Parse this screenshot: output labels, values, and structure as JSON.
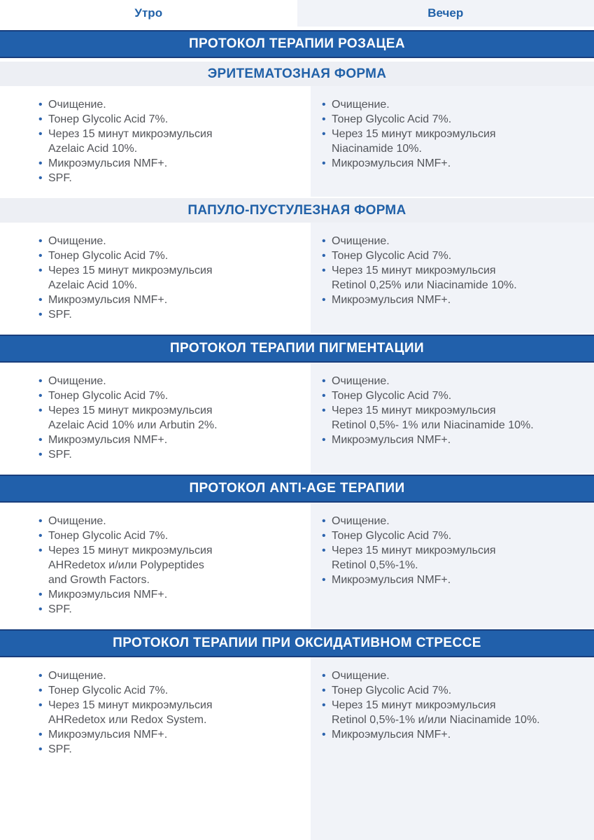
{
  "theme": {
    "banner_bg": "#2160ab",
    "banner_border": "#193e7d",
    "accent": "#2161a8",
    "bullet": "#2c63ad",
    "body_text": "#53555a",
    "evening_bg": "#f1f3f8",
    "band_bg": "#edeff4"
  },
  "header": {
    "morning_label": "Утро",
    "evening_label": "Вечер"
  },
  "protocols": [
    {
      "title": "ПРОТОКОЛ ТЕРАПИИ РОЗАЦЕА",
      "subsections": [
        {
          "title": "ЭРИТЕМАТОЗНАЯ ФОРМА",
          "morning": [
            "Очищение.",
            "Тонер Glycolic Acid 7%.",
            "Через 15 минут микроэмульсия\nAzelaic Acid 10%.",
            "Микроэмульсия NMF+.",
            "SPF."
          ],
          "evening": [
            "Очищение.",
            "Тонер Glycolic Acid 7%.",
            "Через 15 минут микроэмульсия\nNiacinamide 10%.",
            "Микроэмульсия NMF+."
          ]
        },
        {
          "title": "ПАПУЛО-ПУСТУЛЕЗНАЯ ФОРМА",
          "morning": [
            "Очищение.",
            "Тонер Glycolic Acid 7%.",
            "Через 15 минут микроэмульсия\nAzelaic Acid 10%.",
            "Микроэмульсия NMF+.",
            "SPF."
          ],
          "evening": [
            "Очищение.",
            "Тонер Glycolic Acid 7%.",
            "Через 15 минут микроэмульсия\nRetinol 0,25% или Niacinamide 10%.",
            "Микроэмульсия NMF+."
          ]
        }
      ]
    },
    {
      "title": "ПРОТОКОЛ ТЕРАПИИ ПИГМЕНТАЦИИ",
      "subsections": [
        {
          "title": "",
          "morning": [
            "Очищение.",
            "Тонер Glycolic Acid 7%.",
            "Через 15 минут микроэмульсия\nAzelaic Acid 10% или Arbutin 2%.",
            "Микроэмульсия NMF+.",
            "SPF."
          ],
          "evening": [
            "Очищение.",
            "Тонер Glycolic Acid 7%.",
            "Через 15 минут микроэмульсия\nRetinol 0,5%- 1% или Niacinamide 10%.",
            "Микроэмульсия NMF+."
          ]
        }
      ]
    },
    {
      "title": "ПРОТОКОЛ ANTI-AGE ТЕРАПИИ",
      "subsections": [
        {
          "title": "",
          "morning": [
            "Очищение.",
            "Тонер Glycolic Acid 7%.",
            "Через 15 минут микроэмульсия\nAHRedetox и/или Polypeptides\nand Growth Factors.",
            "Микроэмульсия NMF+.",
            "SPF."
          ],
          "evening": [
            "Очищение.",
            "Тонер Glycolic Acid 7%.",
            "Через 15 минут микроэмульсия\nRetinol 0,5%-1%.",
            "Микроэмульсия NMF+."
          ]
        }
      ]
    },
    {
      "title": "ПРОТОКОЛ ТЕРАПИИ ПРИ ОКСИДАТИВНОМ СТРЕССЕ",
      "subsections": [
        {
          "title": "",
          "morning": [
            "Очищение.",
            "Тонер Glycolic Acid 7%.",
            "Через 15 минут микроэмульсия\nAHRedetox или Redox System.",
            "Микроэмульсия NMF+.",
            "SPF."
          ],
          "evening": [
            "Очищение.",
            "Тонер Glycolic Acid 7%.",
            "Через 15 минут микроэмульсия\nRetinol 0,5%-1% и/или Niacinamide 10%.",
            "Микроэмульсия NMF+."
          ]
        }
      ]
    }
  ]
}
